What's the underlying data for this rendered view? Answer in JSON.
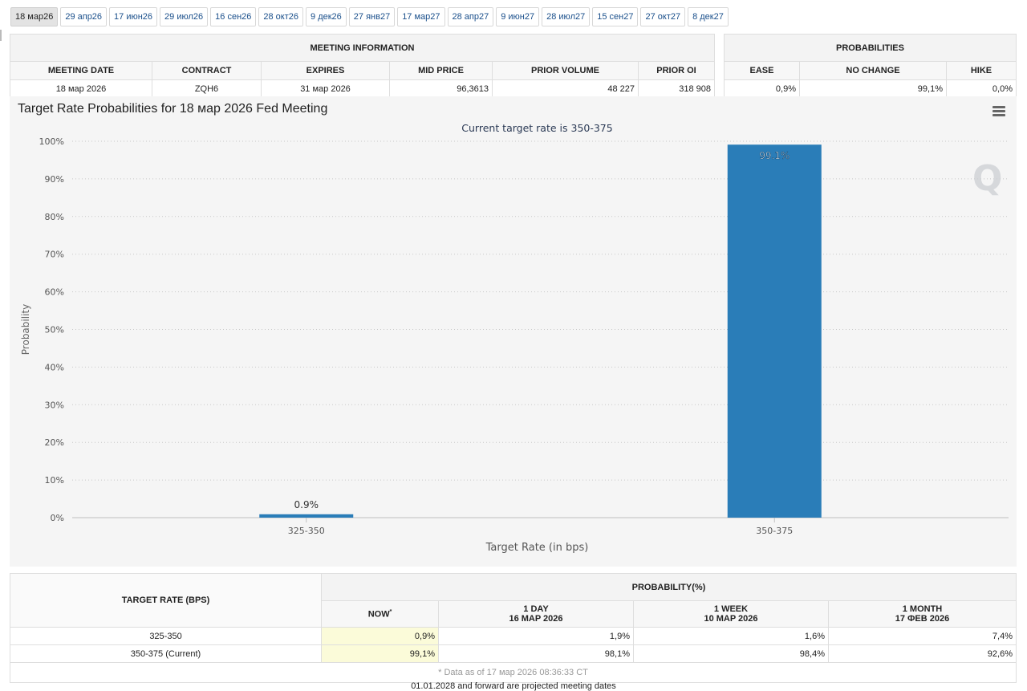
{
  "tabs": [
    "18 мар26",
    "29 апр26",
    "17 июн26",
    "29 июл26",
    "16 сен26",
    "28 окт26",
    "9 дек26",
    "27 янв27",
    "17 мар27",
    "28 апр27",
    "9 июн27",
    "28 июл27",
    "15 сен27",
    "27 окт27",
    "8 дек27"
  ],
  "meeting_info": {
    "title": "MEETING INFORMATION",
    "headers": [
      "MEETING DATE",
      "CONTRACT",
      "EXPIRES",
      "MID PRICE",
      "PRIOR VOLUME",
      "PRIOR OI"
    ],
    "values": [
      "18 мар 2026",
      "ZQH6",
      "31 мар 2026",
      "96,3613",
      "48 227",
      "318 908"
    ]
  },
  "probabilities": {
    "title": "PROBABILITIES",
    "headers": [
      "EASE",
      "NO CHANGE",
      "HIKE"
    ],
    "values": [
      "0,9%",
      "99,1%",
      "0,0%"
    ]
  },
  "chart_data": {
    "type": "bar",
    "title": "Target Rate Probabilities for 18 мар 2026 Fed Meeting",
    "subtitle": "Current target rate is 350-375",
    "categories": [
      "325-350",
      "350-375"
    ],
    "values": [
      0.9,
      99.1
    ],
    "data_labels": [
      "0.9%",
      "99.1%"
    ],
    "xlabel": "Target Rate (in bps)",
    "ylabel": "Probability",
    "ylim": [
      0,
      100
    ],
    "yticks": [
      "0%",
      "10%",
      "20%",
      "30%",
      "40%",
      "50%",
      "60%",
      "70%",
      "80%",
      "90%",
      "100%"
    ],
    "grid": true,
    "bar_color": "#2a7db8",
    "watermark": "Q"
  },
  "history": {
    "target_header": "TARGET RATE (BPS)",
    "prob_header": "PROBABILITY(%)",
    "columns": [
      {
        "line1": "NOW",
        "mark": "*",
        "line2": ""
      },
      {
        "line1": "1 DAY",
        "line2": "16 MAP 2026"
      },
      {
        "line1": "1 WEEK",
        "line2": "10 MAP 2026"
      },
      {
        "line1": "1 MONTH",
        "line2": "17 ФЕВ 2026"
      }
    ],
    "rows": [
      {
        "rate": "325-350",
        "values": [
          "0,9%",
          "1,9%",
          "1,6%",
          "7,4%"
        ]
      },
      {
        "rate": "350-375 (Current)",
        "values": [
          "99,1%",
          "98,1%",
          "98,4%",
          "92,6%"
        ]
      }
    ],
    "note": "* Data as of 17 мар 2026 08:36:33 CT"
  },
  "footer": "01.01.2028 and forward are projected meeting dates"
}
